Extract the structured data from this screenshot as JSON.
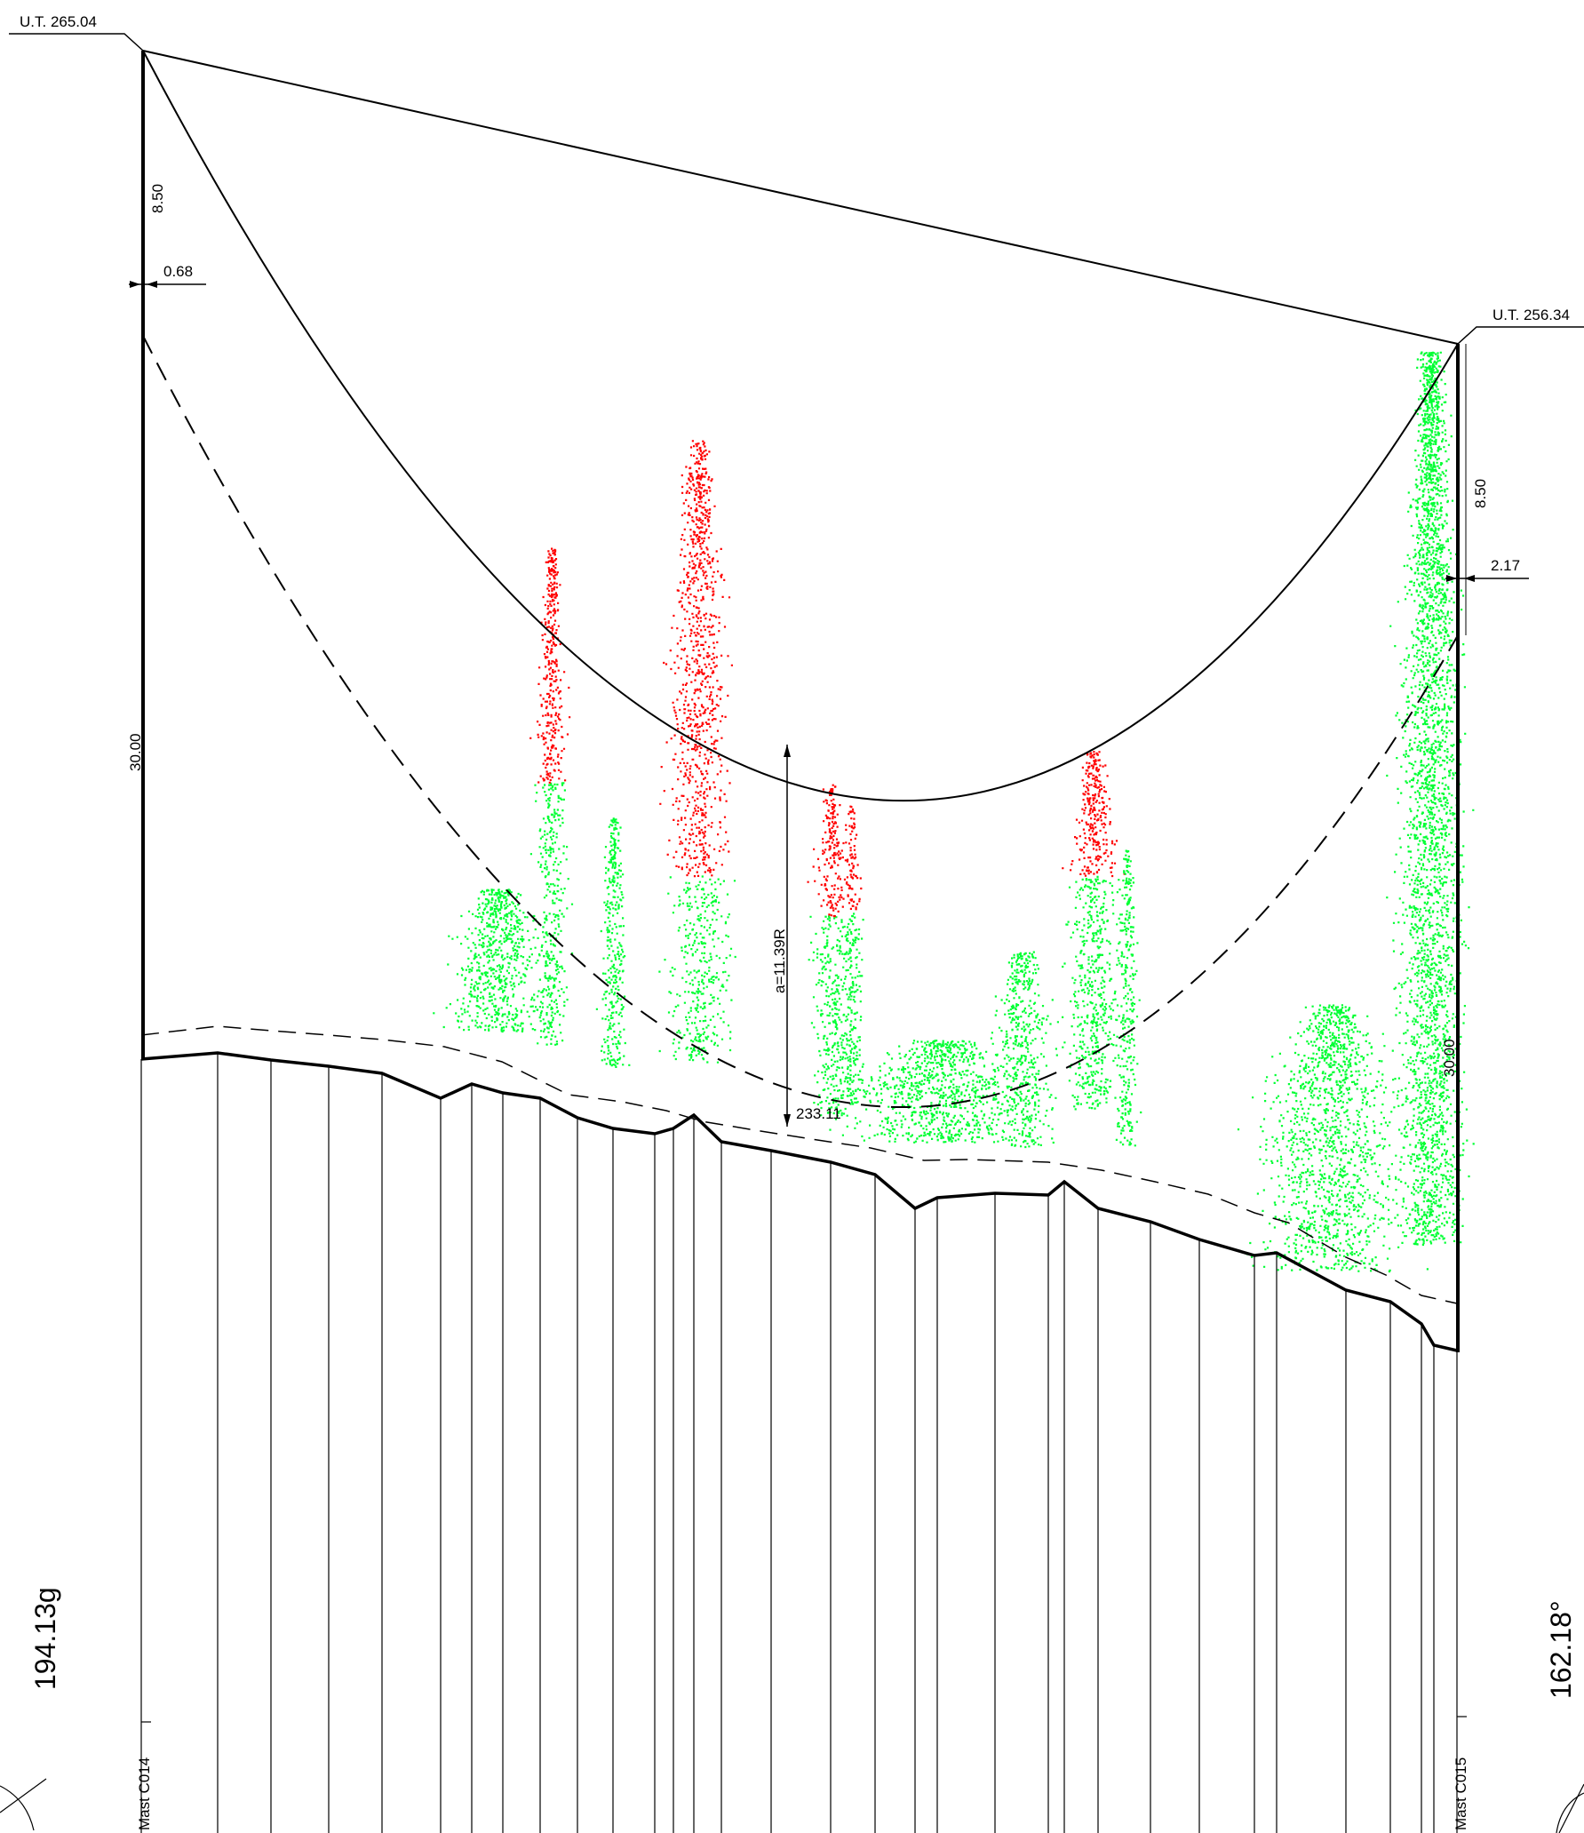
{
  "masts": {
    "left": {
      "label": "Mast C014",
      "elevation_label": "U.T. 265.04",
      "height": "30.00",
      "offset_top": "8.50",
      "offset_side": "0.68",
      "angle": "194.13g"
    },
    "right": {
      "label": "Mast C015",
      "elevation_label": "U.T. 256.34",
      "height": "30.00",
      "offset_top": "8.50",
      "offset_side": "2.17",
      "angle": "162.18°"
    }
  },
  "span": {
    "sag_label": "a=11.39R",
    "ground_elevation_label": "233.11"
  },
  "colors": {
    "line": "#000000",
    "vegetation_ok": "#00ff33",
    "vegetation_conflict": "#ff0000"
  },
  "vegetation": {
    "clusters": [
      {
        "id": "tree-1",
        "status": "conflict"
      },
      {
        "id": "tree-2",
        "status": "conflict"
      },
      {
        "id": "tree-3",
        "status": "conflict"
      },
      {
        "id": "tree-4",
        "status": "conflict"
      },
      {
        "id": "tree-5",
        "status": "conflict"
      },
      {
        "id": "tree-6",
        "status": "conflict"
      },
      {
        "id": "scrub-left",
        "status": "ok"
      },
      {
        "id": "shrub-mid",
        "status": "ok"
      },
      {
        "id": "understory",
        "status": "ok"
      },
      {
        "id": "ground-cover",
        "status": "ok"
      },
      {
        "id": "grove-right",
        "status": "ok"
      },
      {
        "id": "scattered-right",
        "status": "ok"
      }
    ]
  }
}
